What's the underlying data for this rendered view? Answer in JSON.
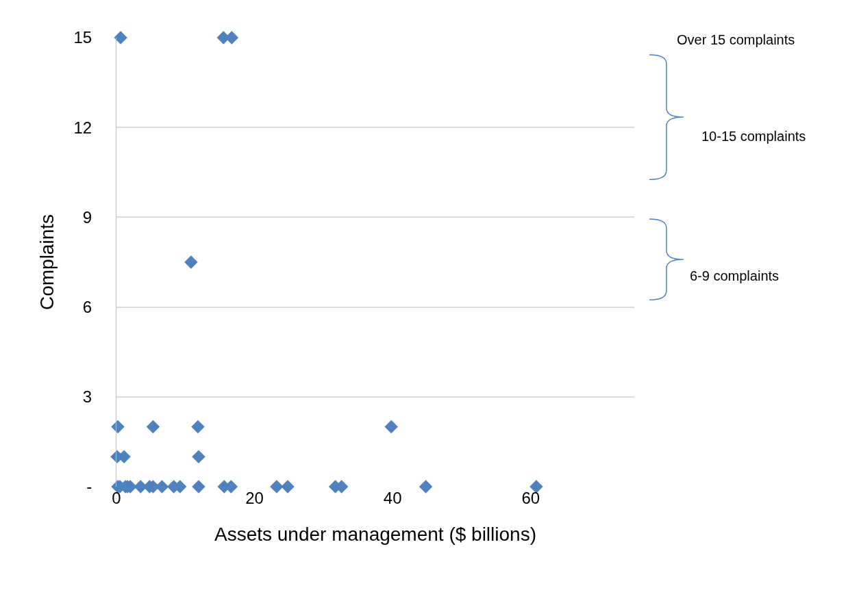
{
  "chart_data": {
    "type": "scatter",
    "xlabel": "Assets under management ($ billions)",
    "ylabel": "Complaints",
    "x": [
      0.2,
      0.5,
      1.3,
      1.6,
      2.0,
      3.5,
      4.8,
      5.3,
      6.6,
      8.3,
      9.2,
      11.9,
      15.6,
      16.6,
      23.2,
      24.8,
      31.7,
      32.6,
      44.8,
      60.8,
      0.1,
      1.1,
      11.9,
      0.2,
      5.3,
      11.8,
      39.8,
      10.8,
      0.6,
      15.5,
      16.7
    ],
    "values": [
      0,
      0,
      0,
      0,
      0,
      0,
      0,
      0,
      0,
      0,
      0,
      0,
      0,
      0,
      0,
      0,
      0,
      0,
      0,
      0,
      1,
      1,
      1,
      2,
      2,
      2,
      2,
      7.5,
      15,
      15,
      15
    ],
    "color": "#4f81bd",
    "marker": "diamond",
    "xlim": [
      0,
      75
    ],
    "xticks": [
      0,
      20,
      40,
      60
    ],
    "ylim": [
      0,
      15
    ],
    "yticks": [
      {
        "value": 0,
        "label": "-"
      },
      3,
      6,
      9,
      12,
      15
    ],
    "grid": "y",
    "annotations": [
      "Over 15 complaints",
      "10-15 complaints",
      "6-9 complaints"
    ]
  }
}
